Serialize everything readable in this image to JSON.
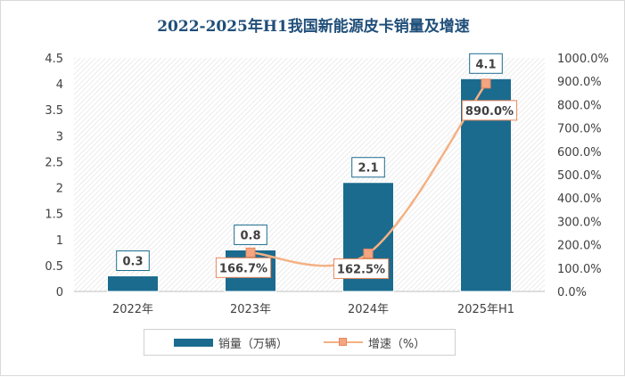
{
  "chart_data": {
    "type": "bar",
    "title": "2022-2025年H1我国新能源皮卡销量及增速",
    "categories": [
      "2022年",
      "2023年",
      "2024年",
      "2025年H1"
    ],
    "series": [
      {
        "name": "销量（万辆）",
        "axis": "left",
        "type": "bar",
        "values": [
          0.3,
          0.8,
          2.1,
          4.1
        ],
        "labels": [
          "0.3",
          "0.8",
          "2.1",
          "4.1"
        ],
        "color": "#1b6b8f"
      },
      {
        "name": "增速（%）",
        "axis": "right",
        "type": "line",
        "values": [
          null,
          166.7,
          162.5,
          890.0
        ],
        "labels": [
          "",
          "166.7%",
          "162.5%",
          "890.0%"
        ],
        "color": "#f4b183"
      }
    ],
    "y_left": {
      "ylim": [
        0,
        4.5
      ],
      "ticks": [
        "0",
        "0.5",
        "1",
        "1.5",
        "2",
        "2.5",
        "3",
        "3.5",
        "4",
        "4.5"
      ]
    },
    "y_right": {
      "ylim": [
        0,
        1000
      ],
      "ticks": [
        "0.0%",
        "100.0%",
        "200.0%",
        "300.0%",
        "400.0%",
        "500.0%",
        "600.0%",
        "700.0%",
        "800.0%",
        "900.0%",
        "1000.0%"
      ]
    },
    "grid": false,
    "legend": "bottom"
  }
}
